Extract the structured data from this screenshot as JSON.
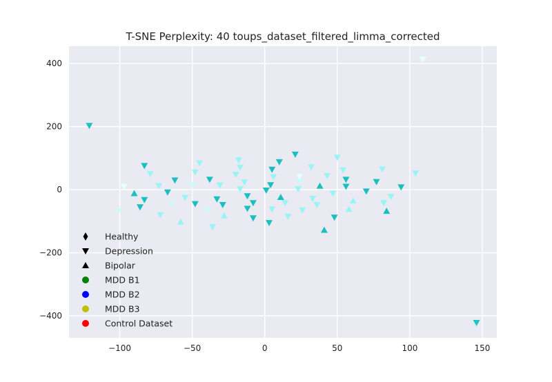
{
  "chart_data": {
    "type": "scatter",
    "title": "T-SNE Perplexity: 40 toups_dataset_filtered_limma_corrected",
    "xlabel": "",
    "ylabel": "",
    "xlim": [
      -135,
      160
    ],
    "ylim": [
      -470,
      455
    ],
    "xticks": [
      -100,
      -50,
      0,
      50,
      100,
      150
    ],
    "yticks": [
      -400,
      -200,
      0,
      200,
      400
    ],
    "xtick_labels": [
      "−100",
      "−50",
      "0",
      "50",
      "100",
      "150"
    ],
    "ytick_labels": [
      "−400",
      "−200",
      "0",
      "200",
      "400"
    ],
    "grid": true,
    "legend_position": "lower-left",
    "background": "#eaeaf2",
    "grid_color": "#ffffff",
    "legend": [
      {
        "label": "Healthy",
        "marker": "diamond",
        "color": "#000000"
      },
      {
        "label": "Depression",
        "marker": "triangle-down",
        "color": "#000000"
      },
      {
        "label": "Bipolar",
        "marker": "triangle-up",
        "color": "#000000"
      },
      {
        "label": "MDD B1",
        "marker": "circle",
        "color": "#008000"
      },
      {
        "label": "MDD B2",
        "marker": "circle",
        "color": "#0000ff"
      },
      {
        "label": "MDD B3",
        "marker": "circle",
        "color": "#bfbf00"
      },
      {
        "label": "Control Dataset",
        "marker": "circle",
        "color": "#ff0000"
      }
    ],
    "points": [
      {
        "x": -121,
        "y": 203,
        "marker": "down",
        "color": "#19c4c4"
      },
      {
        "x": 146,
        "y": -422,
        "marker": "down",
        "color": "#19c4c4"
      },
      {
        "x": 109,
        "y": 413,
        "marker": "down",
        "color": "#e6ffff"
      },
      {
        "x": -101,
        "y": -68,
        "marker": "down",
        "color": "#ccfafa"
      },
      {
        "x": -97,
        "y": 10,
        "marker": "down",
        "color": "#e6ffff"
      },
      {
        "x": -90,
        "y": -12,
        "marker": "up",
        "color": "#1cbfbf"
      },
      {
        "x": -86,
        "y": -55,
        "marker": "down",
        "color": "#1cbfbf"
      },
      {
        "x": -83,
        "y": 76,
        "marker": "down",
        "color": "#1cbfbf"
      },
      {
        "x": -83,
        "y": -32,
        "marker": "down",
        "color": "#1cbfbf"
      },
      {
        "x": -79,
        "y": 50,
        "marker": "down",
        "color": "#99f5f5"
      },
      {
        "x": -73,
        "y": 12,
        "marker": "down",
        "color": "#99f5f5"
      },
      {
        "x": -72,
        "y": -80,
        "marker": "down",
        "color": "#99f5f5"
      },
      {
        "x": -67,
        "y": -8,
        "marker": "down",
        "color": "#1cbfbf"
      },
      {
        "x": -64,
        "y": -45,
        "marker": "down",
        "color": "#ccfafa"
      },
      {
        "x": -62,
        "y": 30,
        "marker": "down",
        "color": "#1cbfbf"
      },
      {
        "x": -58,
        "y": -102,
        "marker": "up",
        "color": "#99f5f5"
      },
      {
        "x": -55,
        "y": -25,
        "marker": "down",
        "color": "#99f5f5"
      },
      {
        "x": -50,
        "y": 15,
        "marker": "down",
        "color": "#ccfafa"
      },
      {
        "x": -48,
        "y": 55,
        "marker": "down",
        "color": "#99f5f5"
      },
      {
        "x": -48,
        "y": -45,
        "marker": "down",
        "color": "#1cbfbf"
      },
      {
        "x": -45,
        "y": 84,
        "marker": "down",
        "color": "#99f5f5"
      },
      {
        "x": -40,
        "y": -65,
        "marker": "down",
        "color": "#ccfafa"
      },
      {
        "x": -38,
        "y": 32,
        "marker": "down",
        "color": "#1cbfbf"
      },
      {
        "x": -36,
        "y": -118,
        "marker": "down",
        "color": "#99f5f5"
      },
      {
        "x": -33,
        "y": -30,
        "marker": "down",
        "color": "#1cbfbf"
      },
      {
        "x": -31,
        "y": 14,
        "marker": "down",
        "color": "#99f5f5"
      },
      {
        "x": -29,
        "y": -48,
        "marker": "down",
        "color": "#1cbfbf"
      },
      {
        "x": -28,
        "y": -82,
        "marker": "up",
        "color": "#99f5f5"
      },
      {
        "x": -20,
        "y": 48,
        "marker": "down",
        "color": "#99f5f5"
      },
      {
        "x": -18,
        "y": 94,
        "marker": "down",
        "color": "#99f5f5"
      },
      {
        "x": -17,
        "y": 70,
        "marker": "down",
        "color": "#99f5f5"
      },
      {
        "x": -17,
        "y": 2,
        "marker": "down",
        "color": "#99f5f5"
      },
      {
        "x": -14,
        "y": 24,
        "marker": "down",
        "color": "#99f5f5"
      },
      {
        "x": -12,
        "y": -20,
        "marker": "down",
        "color": "#1cbfbf"
      },
      {
        "x": -12,
        "y": -60,
        "marker": "down",
        "color": "#1cbfbf"
      },
      {
        "x": -8,
        "y": -90,
        "marker": "down",
        "color": "#1cbfbf"
      },
      {
        "x": -8,
        "y": -42,
        "marker": "down",
        "color": "#1cbfbf"
      },
      {
        "x": 1,
        "y": -2,
        "marker": "down",
        "color": "#1cbfbf"
      },
      {
        "x": 3,
        "y": -105,
        "marker": "down",
        "color": "#1cbfbf"
      },
      {
        "x": 4,
        "y": 15,
        "marker": "down",
        "color": "#1cbfbf"
      },
      {
        "x": 5,
        "y": 64,
        "marker": "down",
        "color": "#1cbfbf"
      },
      {
        "x": 5,
        "y": -62,
        "marker": "down",
        "color": "#99f5f5"
      },
      {
        "x": 6,
        "y": 40,
        "marker": "down",
        "color": "#99f5f5"
      },
      {
        "x": 10,
        "y": 88,
        "marker": "down",
        "color": "#1cbfbf"
      },
      {
        "x": 11,
        "y": -24,
        "marker": "up",
        "color": "#1cbfbf"
      },
      {
        "x": 14,
        "y": -42,
        "marker": "down",
        "color": "#99f5f5"
      },
      {
        "x": 16,
        "y": -85,
        "marker": "down",
        "color": "#99f5f5"
      },
      {
        "x": 21,
        "y": 112,
        "marker": "down",
        "color": "#1cbfbf"
      },
      {
        "x": 23,
        "y": 2,
        "marker": "down",
        "color": "#99f5f5"
      },
      {
        "x": 24,
        "y": 25,
        "marker": "down",
        "color": "#ccfafa"
      },
      {
        "x": 24,
        "y": 42,
        "marker": "down",
        "color": "#e6ffff"
      },
      {
        "x": 26,
        "y": -65,
        "marker": "down",
        "color": "#99f5f5"
      },
      {
        "x": 32,
        "y": 72,
        "marker": "down",
        "color": "#99f5f5"
      },
      {
        "x": 33,
        "y": -28,
        "marker": "down",
        "color": "#99f5f5"
      },
      {
        "x": 36,
        "y": -48,
        "marker": "down",
        "color": "#99f5f5"
      },
      {
        "x": 38,
        "y": 12,
        "marker": "up",
        "color": "#1cbfbf"
      },
      {
        "x": 41,
        "y": -128,
        "marker": "up",
        "color": "#1cbfbf"
      },
      {
        "x": 43,
        "y": 44,
        "marker": "down",
        "color": "#99f5f5"
      },
      {
        "x": 47,
        "y": -12,
        "marker": "down",
        "color": "#99f5f5"
      },
      {
        "x": 48,
        "y": -88,
        "marker": "down",
        "color": "#1cbfbf"
      },
      {
        "x": 50,
        "y": 102,
        "marker": "down",
        "color": "#99f5f5"
      },
      {
        "x": 54,
        "y": 62,
        "marker": "down",
        "color": "#99f5f5"
      },
      {
        "x": 56,
        "y": 32,
        "marker": "down",
        "color": "#1cbfbf"
      },
      {
        "x": 56,
        "y": 10,
        "marker": "down",
        "color": "#1cbfbf"
      },
      {
        "x": 58,
        "y": -62,
        "marker": "up",
        "color": "#99f5f5"
      },
      {
        "x": 61,
        "y": -35,
        "marker": "up",
        "color": "#99f5f5"
      },
      {
        "x": 70,
        "y": -5,
        "marker": "down",
        "color": "#1cbfbf"
      },
      {
        "x": 77,
        "y": 25,
        "marker": "down",
        "color": "#1cbfbf"
      },
      {
        "x": 81,
        "y": 65,
        "marker": "down",
        "color": "#99f5f5"
      },
      {
        "x": 82,
        "y": -42,
        "marker": "down",
        "color": "#99f5f5"
      },
      {
        "x": 84,
        "y": -68,
        "marker": "up",
        "color": "#1cbfbf"
      },
      {
        "x": 87,
        "y": -22,
        "marker": "down",
        "color": "#99f5f5"
      },
      {
        "x": 94,
        "y": 8,
        "marker": "down",
        "color": "#1cbfbf"
      },
      {
        "x": 104,
        "y": 52,
        "marker": "down",
        "color": "#99f5f5"
      }
    ]
  }
}
